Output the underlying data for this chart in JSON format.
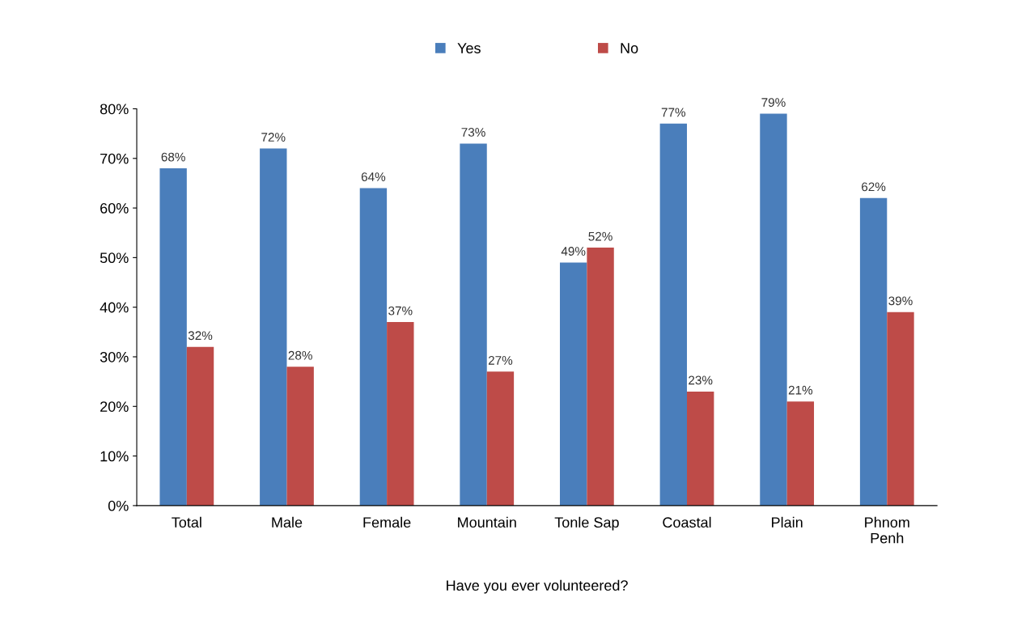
{
  "chart_data": {
    "type": "bar",
    "xlabel": "Have you ever volunteered?",
    "categories": [
      "Total",
      "Male",
      "Female",
      "Mountain",
      "Tonle Sap",
      "Coastal",
      "Plain",
      "Phnom\nPenh"
    ],
    "series": [
      {
        "name": "Yes",
        "color": "#4a7ebb",
        "values": [
          68,
          72,
          64,
          73,
          49,
          77,
          79,
          62
        ],
        "value_labels": [
          "68%",
          "72%",
          "64%",
          "73%",
          "49%",
          "77%",
          "79%",
          "62%"
        ]
      },
      {
        "name": "No",
        "color": "#be4b48",
        "values": [
          32,
          28,
          37,
          27,
          52,
          23,
          21,
          39
        ],
        "value_labels": [
          "32%",
          "28%",
          "37%",
          "27%",
          "52%",
          "23%",
          "21%",
          "39%"
        ]
      }
    ],
    "ylim": [
      0,
      80
    ],
    "yticks": [
      {
        "value": 0,
        "label": "0%"
      },
      {
        "value": 10,
        "label": "10%"
      },
      {
        "value": 20,
        "label": "20%"
      },
      {
        "value": 30,
        "label": "30%"
      },
      {
        "value": 40,
        "label": "40%"
      },
      {
        "value": 50,
        "label": "50%"
      },
      {
        "value": 60,
        "label": "60%"
      },
      {
        "value": 70,
        "label": "70%"
      },
      {
        "value": 80,
        "label": "80%"
      }
    ],
    "grid": false,
    "legend": "top"
  }
}
